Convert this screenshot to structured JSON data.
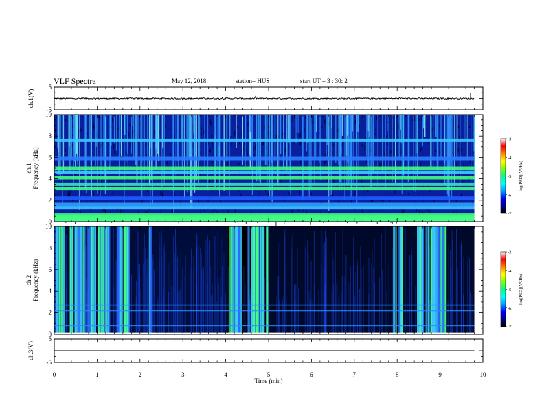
{
  "header": {
    "title": "VLF Spectra",
    "date": "May 12, 2018",
    "station": "station= HUS",
    "start": "start  UT =   3 : 30: 2"
  },
  "colorbar": {
    "label": "log(PSD)(V²/Hz)",
    "ticks": [
      "-3",
      "-4",
      "-5",
      "-6",
      "-7"
    ],
    "range": [
      -7,
      -3
    ],
    "colors": [
      "#000000",
      "#00008b",
      "#0000ff",
      "#00a0ff",
      "#00ffff",
      "#00ff80",
      "#80ff00",
      "#ffff00",
      "#ff8000",
      "#ff0000",
      "#ffffff"
    ]
  },
  "chart_data": [
    {
      "type": "line",
      "ylabel": "ch.1(V)",
      "ylim": [
        -5,
        5
      ],
      "yticks": [
        "5",
        "-5"
      ],
      "xlim": [
        0,
        10
      ],
      "series": [
        {
          "values": "noisy trace near 0 V across 0–9.8 min"
        }
      ]
    },
    {
      "type": "heatmap",
      "ylabel": "ch.1\nFrequency (kHz)",
      "ylim": [
        0,
        10
      ],
      "yticks": [
        "0",
        "2",
        "4",
        "6",
        "8",
        "10"
      ],
      "xlim": [
        0,
        10
      ],
      "data_extent_min": [
        0,
        9.8
      ],
      "bands_khz": [
        0.4,
        0.6,
        1.3,
        1.6,
        2.2,
        3.1,
        3.5,
        4.1,
        4.6,
        5.0,
        5.9,
        7.6
      ]
    },
    {
      "type": "heatmap",
      "ylabel": "ch.2\nFrequency (kHz)",
      "ylim": [
        0,
        10
      ],
      "yticks": [
        "0",
        "2",
        "4",
        "6",
        "8",
        "10"
      ],
      "xlim": [
        0,
        10
      ],
      "data_extent_min": [
        0,
        9.8
      ],
      "burst_regions_min": [
        [
          0.0,
          0.25
        ],
        [
          0.35,
          0.95
        ],
        [
          1.0,
          1.3
        ],
        [
          1.45,
          1.75
        ],
        [
          2.2,
          2.25
        ],
        [
          4.05,
          4.35
        ],
        [
          4.5,
          4.95
        ],
        [
          7.9,
          8.1
        ],
        [
          8.45,
          9.15
        ]
      ]
    },
    {
      "type": "line",
      "ylabel": "ch.3(V)",
      "ylim": [
        -5,
        5
      ],
      "yticks": [
        "5",
        "-5"
      ],
      "xlim": [
        0,
        10
      ],
      "xlabel": "Time (min)",
      "xticks": [
        "0",
        "1",
        "2",
        "3",
        "4",
        "5",
        "6",
        "7",
        "8",
        "9",
        "10"
      ],
      "series": [
        {
          "values": "flat line at 0 V"
        }
      ]
    }
  ]
}
